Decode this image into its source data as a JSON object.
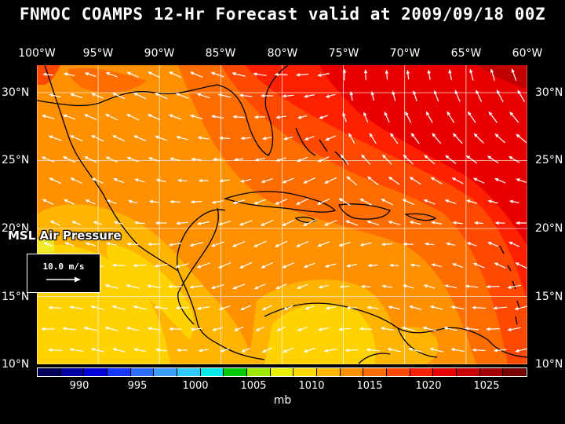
{
  "title": "FNMOC COAMPS 12-Hr Forecast valid at 2009/09/18 00Z",
  "longitude_labels": [
    "100°W",
    "95°W",
    "90°W",
    "85°W",
    "80°W",
    "75°W",
    "70°W",
    "65°W",
    "60°W"
  ],
  "latitude_labels": [
    "30°N",
    "25°N",
    "20°N",
    "15°N",
    "10°N"
  ],
  "field_label": "MSL Air Pressure",
  "reference_vector": {
    "label": "10.0 m/s",
    "icon": "arrow-right-icon"
  },
  "colorbar": {
    "colors": [
      "#00005a",
      "#0000a0",
      "#0000d8",
      "#1438ff",
      "#2c6cff",
      "#3c9cff",
      "#30c8ff",
      "#00e8e8",
      "#00c800",
      "#9ce800",
      "#e8f000",
      "#ffd800",
      "#ffb400",
      "#ff9000",
      "#ff6c00",
      "#ff4800",
      "#ff2000",
      "#e80000",
      "#c80000",
      "#a00000",
      "#780000"
    ],
    "tick_labels": [
      "990",
      "995",
      "1000",
      "1005",
      "1010",
      "1015",
      "1020",
      "1025"
    ],
    "units": "mb"
  },
  "map_colors": {
    "p1008": "#f0ea28",
    "p1010": "#ffd200",
    "p1011": "#ffb400",
    "p1013": "#ff9000",
    "p1015": "#ff6c00",
    "p1017": "#ff4800",
    "p1019": "#ff2000",
    "p1021": "#e80000",
    "p1022": "#c00000"
  }
}
